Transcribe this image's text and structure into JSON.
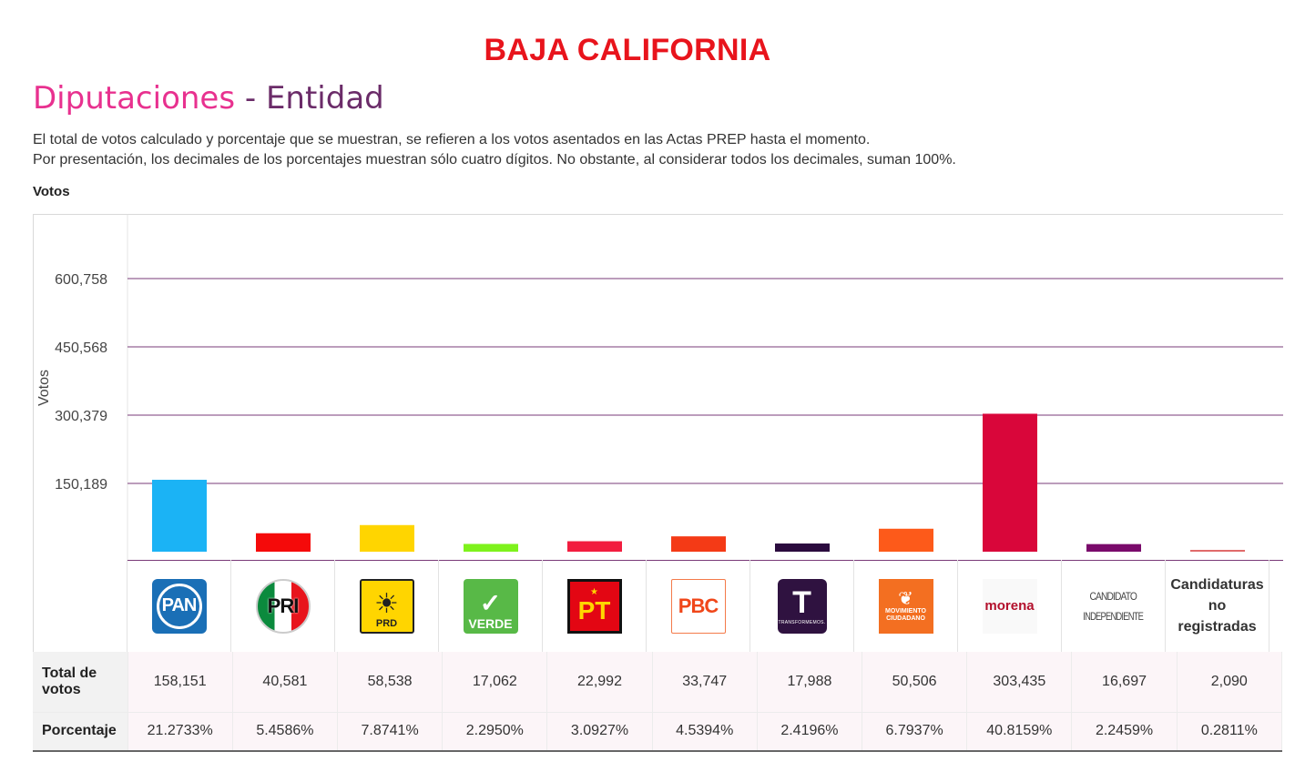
{
  "header": {
    "state": "BAJA CALIFORNIA",
    "section_main": "Diputaciones",
    "section_sep": " - ",
    "section_sub": "Entidad",
    "desc_line1": "El total de votos calculado y porcentaje que se muestran, se refieren a los votos asentados en las Actas PREP hasta el momento.",
    "desc_line2": "Por presentación, los decimales de los porcentajes muestran sólo cuatro dígitos. No obstante, al considerar todos los decimales, suman 100%.",
    "votes_label": "Votos"
  },
  "table": {
    "row1_label_a": "Total de",
    "row1_label_b": "votos",
    "row2_label": "Porcentaje"
  },
  "parties": [
    {
      "name": "PAN",
      "logo_text": "PAN",
      "votes_text": "158,151",
      "pct": "21.2733%",
      "color": "#1bb3f5",
      "icon": "pan-logo"
    },
    {
      "name": "PRI",
      "logo_text": "PRI",
      "votes_text": "40,581",
      "pct": "5.4586%",
      "color": "#f50a0a",
      "icon": "pri-logo"
    },
    {
      "name": "PRD",
      "logo_text": "PRD",
      "votes_text": "58,538",
      "pct": "7.8741%",
      "color": "#ffd500",
      "icon": "prd-logo"
    },
    {
      "name": "VERDE",
      "logo_text": "VERDE",
      "votes_text": "17,062",
      "pct": "2.2950%",
      "color": "#7ef21c",
      "icon": "verde-logo"
    },
    {
      "name": "PT",
      "logo_text": "PT",
      "votes_text": "22,992",
      "pct": "3.0927%",
      "color": "#f21d3f",
      "icon": "pt-logo"
    },
    {
      "name": "PBC",
      "logo_text": "PBC",
      "votes_text": "33,747",
      "pct": "4.5394%",
      "color": "#f43a16",
      "icon": "pbc-logo"
    },
    {
      "name": "TRANSFORMEMOS",
      "logo_text": "TRANSFORMEMOS.",
      "votes_text": "17,988",
      "pct": "2.4196%",
      "color": "#2b0b3e",
      "icon": "transformemos-logo"
    },
    {
      "name": "MOVIMIENTO CIUDADANO",
      "logo_text": "MOVIMIENTO CIUDADANO",
      "votes_text": "50,506",
      "pct": "6.7937%",
      "color": "#fd5a1a",
      "icon": "mc-logo"
    },
    {
      "name": "morena",
      "logo_text": "morena",
      "votes_text": "303,435",
      "pct": "40.8159%",
      "color": "#d9063a",
      "icon": "morena-logo"
    },
    {
      "name": "CANDIDATO INDEPENDIENTE",
      "logo_text": "CANDIDATO INDEPENDIENTE",
      "votes_text": "16,697",
      "pct": "2.2459%",
      "color": "#7a0a6b",
      "icon": "independiente-logo"
    },
    {
      "name": "Candidaturas no registradas",
      "logo_text": "Candidaturas no registradas",
      "votes_text": "2,090",
      "pct": "0.2811%",
      "color": "#e06a6a",
      "icon": "no-registradas-text"
    }
  ],
  "chart_data": {
    "type": "bar",
    "ylabel": "Votos",
    "ylim": [
      0,
      751000
    ],
    "yticks": [
      150189,
      300379,
      450568,
      600758
    ],
    "ytick_labels": [
      "150,189",
      "300,379",
      "450,568",
      "600,758"
    ],
    "categories": [
      "PAN",
      "PRI",
      "PRD",
      "VERDE",
      "PT",
      "PBC",
      "TRANSFORMEMOS",
      "MOVIMIENTO CIUDADANO",
      "morena",
      "CANDIDATO INDEPENDIENTE",
      "Candidaturas no registradas"
    ],
    "values": [
      158151,
      40581,
      58538,
      17062,
      22992,
      33747,
      17988,
      50506,
      303435,
      16697,
      2090
    ],
    "grid": true,
    "grid_color": "#7a3b78"
  }
}
